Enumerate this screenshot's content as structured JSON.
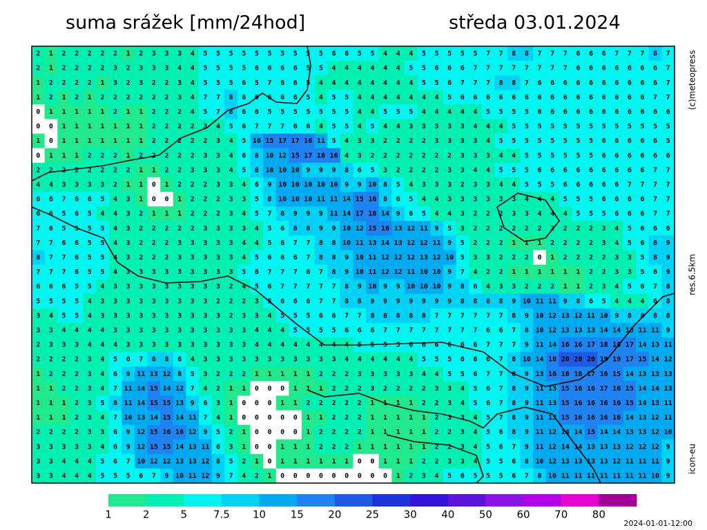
{
  "header": {
    "title": "suma srážek [mm/24hod]",
    "date": "středa 03.01.2024"
  },
  "side": {
    "copyright": "(c)meteopress",
    "resolution": "res.6.5km",
    "model": "icon-eu"
  },
  "footer": {
    "run": "2024-01-01-12:00"
  },
  "legend": {
    "values": [
      1,
      2,
      5,
      7.5,
      10,
      15,
      20,
      25,
      30,
      40,
      50,
      60,
      70,
      80
    ],
    "colors": [
      "#20e88c",
      "#00f0b4",
      "#00f5f0",
      "#00d2f5",
      "#00aaf0",
      "#1e82f0",
      "#1e5ae6",
      "#1e32dc",
      "#3214dc",
      "#5a14dc",
      "#8c14e6",
      "#b400e6",
      "#e600d2",
      "#a00096"
    ]
  },
  "map": {
    "grid": [
      [
        2,
        1,
        2,
        2,
        2,
        2,
        2,
        1,
        2,
        3,
        3,
        3,
        4,
        5,
        5,
        5,
        5,
        5,
        5,
        5,
        5,
        5,
        5,
        6,
        6,
        5,
        5,
        4,
        4,
        4,
        5,
        5,
        5,
        5,
        5,
        7,
        7,
        8,
        8,
        7,
        7,
        7,
        6,
        6,
        6,
        7,
        7,
        7,
        8,
        7
      ],
      [
        2,
        1,
        2,
        2,
        2,
        2,
        3,
        2,
        3,
        3,
        3,
        4,
        4,
        5,
        5,
        5,
        5,
        6,
        6,
        6,
        6,
        5,
        5,
        4,
        4,
        4,
        4,
        4,
        4,
        5,
        5,
        6,
        6,
        6,
        7,
        7,
        7,
        7,
        7,
        7,
        7,
        7,
        6,
        6,
        6,
        6,
        6,
        6,
        6,
        7
      ],
      [
        1,
        2,
        2,
        2,
        2,
        1,
        3,
        2,
        3,
        2,
        2,
        3,
        4,
        5,
        5,
        5,
        6,
        5,
        7,
        6,
        6,
        5,
        4,
        4,
        4,
        4,
        4,
        4,
        4,
        4,
        5,
        5,
        6,
        7,
        7,
        7,
        8,
        8,
        7,
        6,
        6,
        6,
        6,
        6,
        6,
        6,
        6,
        6,
        6,
        7
      ],
      [
        1,
        2,
        1,
        2,
        1,
        2,
        2,
        2,
        2,
        2,
        2,
        3,
        4,
        7,
        7,
        8,
        6,
        6,
        6,
        6,
        6,
        5,
        4,
        5,
        5,
        4,
        4,
        4,
        4,
        4,
        4,
        4,
        5,
        6,
        6,
        6,
        6,
        6,
        6,
        6,
        6,
        6,
        6,
        6,
        6,
        6,
        6,
        6,
        7,
        7
      ],
      [
        0,
        1,
        1,
        1,
        1,
        1,
        2,
        1,
        1,
        2,
        2,
        2,
        4,
        5,
        7,
        8,
        6,
        6,
        5,
        5,
        5,
        5,
        5,
        5,
        5,
        4,
        4,
        5,
        5,
        5,
        4,
        4,
        4,
        4,
        4,
        5,
        5,
        5,
        5,
        6,
        6,
        6,
        6,
        6,
        6,
        6,
        6,
        6,
        6,
        6
      ],
      [
        0,
        0,
        1,
        1,
        1,
        1,
        1,
        1,
        1,
        2,
        2,
        2,
        2,
        3,
        4,
        5,
        6,
        7,
        7,
        7,
        6,
        6,
        4,
        5,
        5,
        4,
        5,
        4,
        4,
        3,
        3,
        3,
        3,
        3,
        4,
        4,
        4,
        5,
        5,
        5,
        5,
        5,
        5,
        5,
        5,
        5,
        5,
        5,
        5,
        5
      ],
      [
        1,
        0,
        1,
        1,
        1,
        1,
        1,
        1,
        1,
        2,
        2,
        2,
        2,
        2,
        3,
        4,
        5,
        10,
        15,
        17,
        17,
        16,
        11,
        5,
        4,
        3,
        3,
        2,
        2,
        2,
        2,
        3,
        3,
        3,
        3,
        4,
        5,
        5,
        5,
        5,
        5,
        5,
        5,
        5,
        6,
        6,
        6,
        6,
        6,
        5
      ],
      [
        0,
        1,
        1,
        1,
        2,
        2,
        2,
        1,
        2,
        2,
        2,
        2,
        2,
        3,
        3,
        4,
        6,
        8,
        10,
        12,
        15,
        17,
        18,
        16,
        4,
        3,
        2,
        2,
        2,
        2,
        2,
        2,
        2,
        3,
        3,
        3,
        4,
        4,
        5,
        5,
        5,
        5,
        5,
        5,
        6,
        6,
        6,
        6,
        6,
        6
      ],
      [
        2,
        2,
        2,
        2,
        2,
        2,
        2,
        2,
        1,
        1,
        2,
        2,
        3,
        3,
        3,
        4,
        5,
        8,
        10,
        10,
        10,
        9,
        9,
        9,
        8,
        6,
        5,
        3,
        2,
        2,
        2,
        2,
        3,
        3,
        4,
        4,
        5,
        5,
        5,
        6,
        6,
        6,
        6,
        6,
        6,
        6,
        6,
        6,
        7,
        7
      ],
      [
        4,
        4,
        3,
        3,
        3,
        3,
        2,
        1,
        1,
        0,
        1,
        2,
        2,
        2,
        3,
        3,
        4,
        6,
        9,
        10,
        10,
        10,
        10,
        10,
        9,
        9,
        10,
        8,
        5,
        4,
        3,
        3,
        3,
        2,
        3,
        3,
        4,
        4,
        5,
        5,
        5,
        6,
        6,
        6,
        6,
        6,
        7,
        7,
        7,
        7
      ],
      [
        6,
        6,
        7,
        6,
        6,
        5,
        4,
        3,
        1,
        0,
        0,
        1,
        2,
        2,
        2,
        3,
        3,
        5,
        8,
        10,
        10,
        10,
        11,
        11,
        14,
        15,
        16,
        8,
        6,
        5,
        4,
        4,
        3,
        3,
        3,
        3,
        3,
        3,
        4,
        4,
        4,
        5,
        5,
        5,
        6,
        6,
        6,
        6,
        7,
        7
      ],
      [
        6,
        6,
        5,
        6,
        5,
        4,
        4,
        3,
        2,
        1,
        1,
        1,
        2,
        2,
        2,
        3,
        4,
        5,
        7,
        8,
        9,
        9,
        9,
        11,
        14,
        17,
        18,
        14,
        9,
        6,
        5,
        4,
        4,
        3,
        2,
        2,
        2,
        3,
        3,
        4,
        4,
        4,
        5,
        5,
        5,
        6,
        6,
        6,
        7,
        7
      ],
      [
        7,
        6,
        5,
        5,
        5,
        5,
        4,
        3,
        2,
        2,
        2,
        2,
        2,
        3,
        3,
        3,
        3,
        4,
        5,
        6,
        8,
        8,
        9,
        9,
        10,
        12,
        15,
        16,
        13,
        12,
        11,
        9,
        5,
        3,
        2,
        2,
        2,
        2,
        2,
        2,
        2,
        2,
        2,
        2,
        3,
        4,
        5,
        6,
        6,
        6
      ],
      [
        7,
        7,
        6,
        6,
        5,
        5,
        4,
        3,
        2,
        2,
        2,
        3,
        3,
        3,
        3,
        3,
        4,
        4,
        5,
        6,
        7,
        7,
        8,
        8,
        10,
        11,
        13,
        14,
        13,
        12,
        12,
        11,
        9,
        5,
        2,
        2,
        2,
        1,
        1,
        1,
        2,
        2,
        2,
        2,
        3,
        4,
        5,
        6,
        8,
        9
      ],
      [
        8,
        7,
        7,
        6,
        5,
        5,
        4,
        3,
        2,
        2,
        2,
        3,
        3,
        3,
        3,
        3,
        4,
        5,
        6,
        6,
        6,
        7,
        8,
        8,
        9,
        10,
        11,
        12,
        12,
        12,
        13,
        12,
        10,
        5,
        3,
        3,
        2,
        2,
        2,
        0,
        1,
        2,
        2,
        2,
        2,
        3,
        3,
        5,
        8,
        9
      ],
      [
        7,
        7,
        7,
        6,
        5,
        5,
        4,
        3,
        3,
        3,
        3,
        3,
        3,
        3,
        3,
        3,
        5,
        6,
        7,
        7,
        7,
        6,
        7,
        8,
        9,
        10,
        11,
        12,
        12,
        11,
        10,
        10,
        9,
        7,
        4,
        2,
        2,
        1,
        1,
        1,
        1,
        1,
        1,
        2,
        2,
        3,
        3,
        5,
        6,
        9
      ],
      [
        6,
        6,
        6,
        5,
        5,
        4,
        3,
        3,
        3,
        3,
        3,
        3,
        3,
        3,
        3,
        2,
        4,
        5,
        6,
        7,
        7,
        7,
        7,
        7,
        8,
        9,
        10,
        9,
        9,
        10,
        10,
        10,
        9,
        8,
        6,
        4,
        3,
        3,
        2,
        2,
        2,
        1,
        1,
        2,
        3,
        4,
        5,
        6,
        7,
        8
      ],
      [
        5,
        5,
        5,
        5,
        4,
        3,
        3,
        3,
        3,
        3,
        3,
        3,
        3,
        3,
        2,
        2,
        2,
        3,
        5,
        6,
        6,
        6,
        7,
        7,
        8,
        8,
        9,
        9,
        9,
        9,
        9,
        9,
        9,
        8,
        8,
        8,
        8,
        9,
        10,
        11,
        11,
        9,
        8,
        6,
        5,
        4,
        4,
        4,
        6,
        8
      ],
      [
        3,
        4,
        5,
        5,
        4,
        3,
        3,
        3,
        3,
        3,
        3,
        3,
        3,
        3,
        3,
        2,
        3,
        3,
        4,
        5,
        5,
        5,
        6,
        6,
        7,
        7,
        8,
        8,
        8,
        8,
        8,
        7,
        7,
        7,
        7,
        7,
        7,
        8,
        9,
        10,
        12,
        13,
        12,
        11,
        10,
        9,
        8,
        8,
        8,
        8
      ],
      [
        3,
        3,
        4,
        4,
        4,
        4,
        3,
        3,
        3,
        3,
        3,
        3,
        3,
        3,
        3,
        3,
        3,
        4,
        4,
        4,
        5,
        5,
        5,
        5,
        6,
        6,
        6,
        7,
        7,
        7,
        7,
        7,
        7,
        7,
        7,
        6,
        6,
        7,
        8,
        10,
        12,
        13,
        13,
        13,
        14,
        14,
        13,
        11,
        11,
        9
      ],
      [
        2,
        3,
        3,
        3,
        4,
        4,
        4,
        3,
        3,
        3,
        3,
        3,
        3,
        3,
        3,
        3,
        3,
        4,
        4,
        4,
        4,
        4,
        4,
        4,
        4,
        5,
        5,
        5,
        5,
        6,
        6,
        6,
        6,
        6,
        6,
        7,
        7,
        7,
        9,
        11,
        14,
        16,
        16,
        17,
        18,
        18,
        17,
        14,
        13,
        11
      ],
      [
        2,
        2,
        2,
        2,
        3,
        4,
        5,
        6,
        7,
        8,
        8,
        6,
        4,
        3,
        3,
        3,
        3,
        3,
        3,
        3,
        3,
        3,
        3,
        3,
        4,
        4,
        4,
        4,
        4,
        4,
        5,
        5,
        5,
        6,
        6,
        6,
        7,
        8,
        10,
        14,
        18,
        20,
        20,
        20,
        19,
        19,
        17,
        15,
        14,
        12
      ],
      [
        1,
        2,
        2,
        2,
        3,
        4,
        6,
        9,
        11,
        13,
        12,
        8,
        5,
        3,
        2,
        2,
        2,
        1,
        1,
        1,
        1,
        1,
        2,
        2,
        2,
        3,
        3,
        3,
        3,
        3,
        4,
        4,
        5,
        5,
        6,
        7,
        7,
        8,
        9,
        13,
        16,
        18,
        18,
        17,
        16,
        15,
        14,
        13,
        13,
        13
      ],
      [
        1,
        1,
        2,
        2,
        3,
        4,
        7,
        11,
        14,
        15,
        14,
        12,
        7,
        4,
        2,
        1,
        1,
        0,
        0,
        0,
        1,
        1,
        1,
        2,
        2,
        2,
        3,
        2,
        2,
        2,
        2,
        3,
        3,
        4,
        5,
        6,
        7,
        8,
        9,
        11,
        13,
        15,
        16,
        16,
        17,
        16,
        15,
        14,
        14,
        13
      ],
      [
        1,
        1,
        1,
        2,
        3,
        5,
        8,
        11,
        14,
        15,
        15,
        13,
        9,
        6,
        3,
        1,
        0,
        0,
        0,
        1,
        1,
        2,
        2,
        2,
        2,
        2,
        1,
        1,
        1,
        1,
        2,
        2,
        3,
        4,
        5,
        6,
        7,
        8,
        9,
        11,
        13,
        15,
        16,
        16,
        16,
        16,
        15,
        14,
        13,
        11
      ],
      [
        1,
        1,
        1,
        2,
        3,
        4,
        7,
        10,
        13,
        14,
        15,
        14,
        11,
        7,
        4,
        1,
        0,
        0,
        0,
        0,
        0,
        1,
        1,
        2,
        2,
        2,
        1,
        1,
        1,
        1,
        1,
        2,
        3,
        3,
        4,
        5,
        7,
        8,
        9,
        11,
        13,
        15,
        16,
        16,
        16,
        16,
        14,
        13,
        12,
        11
      ],
      [
        2,
        2,
        2,
        2,
        3,
        3,
        6,
        9,
        12,
        15,
        16,
        16,
        12,
        9,
        5,
        2,
        1,
        0,
        0,
        0,
        0,
        1,
        2,
        2,
        2,
        2,
        1,
        1,
        1,
        1,
        1,
        2,
        2,
        3,
        4,
        5,
        6,
        8,
        9,
        11,
        12,
        14,
        14,
        15,
        14,
        14,
        13,
        13,
        12,
        10
      ],
      [
        3,
        3,
        3,
        3,
        3,
        4,
        6,
        9,
        12,
        15,
        15,
        14,
        13,
        11,
        6,
        3,
        1,
        0,
        0,
        1,
        1,
        1,
        2,
        2,
        2,
        1,
        1,
        1,
        1,
        1,
        1,
        2,
        2,
        3,
        4,
        5,
        6,
        7,
        9,
        11,
        12,
        14,
        14,
        13,
        13,
        13,
        12,
        12,
        12,
        9
      ],
      [
        3,
        3,
        4,
        4,
        4,
        5,
        6,
        7,
        10,
        12,
        12,
        13,
        13,
        12,
        8,
        5,
        2,
        1,
        0,
        1,
        1,
        1,
        1,
        1,
        1,
        0,
        0,
        1,
        1,
        1,
        2,
        2,
        3,
        3,
        4,
        5,
        5,
        6,
        8,
        10,
        12,
        13,
        13,
        13,
        13,
        12,
        11,
        11,
        11,
        9
      ],
      [
        3,
        3,
        4,
        4,
        4,
        5,
        5,
        5,
        6,
        7,
        9,
        10,
        11,
        12,
        9,
        7,
        4,
        2,
        1,
        0,
        0,
        0,
        0,
        0,
        0,
        0,
        0,
        0,
        1,
        2,
        3,
        4,
        5,
        6,
        5,
        5,
        5,
        6,
        7,
        8,
        10,
        11,
        11,
        11,
        11,
        11,
        11,
        11,
        10,
        9
      ]
    ]
  }
}
